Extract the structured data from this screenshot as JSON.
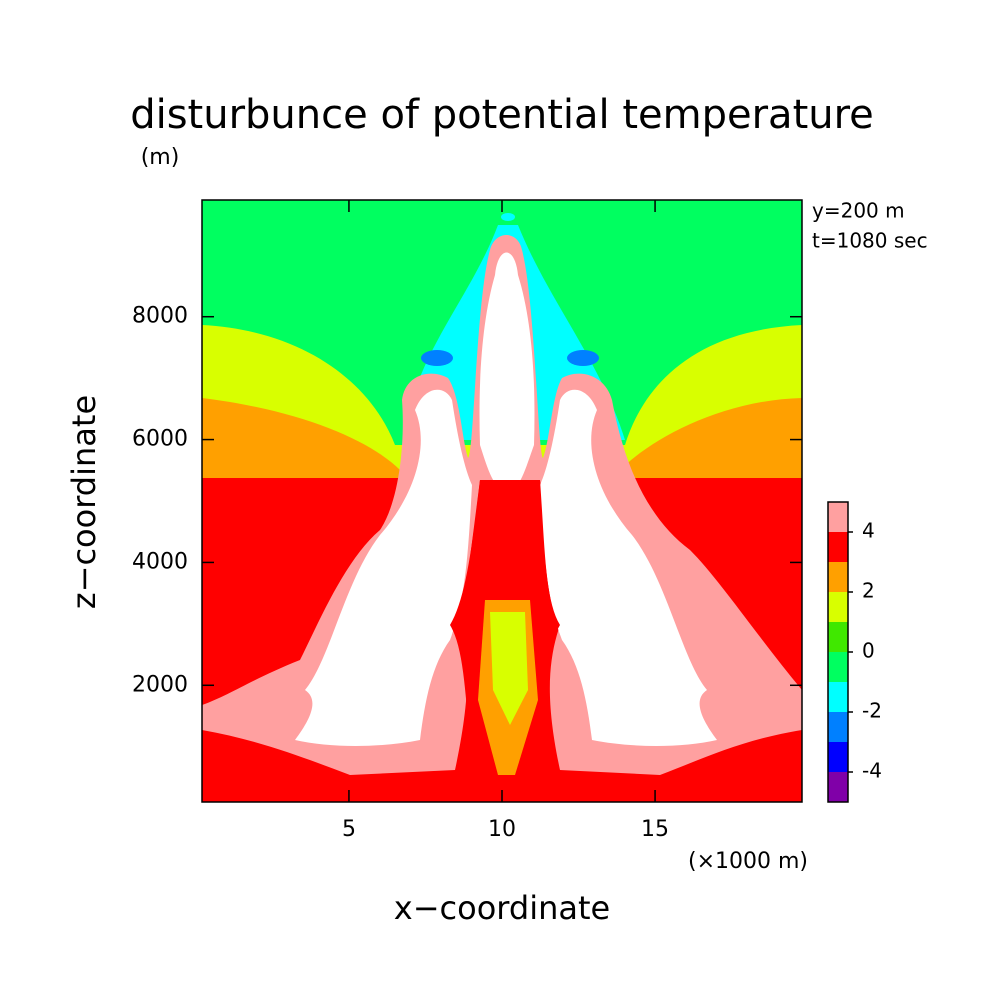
{
  "chart_data": {
    "type": "contour",
    "title": "disturbunce of potential temperature",
    "y_unit": "(m)",
    "x_unit": "(×1000 m)",
    "xlabel": "x−coordinate",
    "ylabel": "z−coordinate",
    "annotations": [
      "y=200 m",
      "t=1080 sec"
    ],
    "xlim": [
      0.2,
      19.8
    ],
    "xticks": [
      5,
      10,
      15
    ],
    "ylim": [
      100,
      9900
    ],
    "yticks": [
      2000,
      4000,
      6000,
      8000
    ],
    "colorbar": {
      "levels": [
        -5,
        -4,
        -3,
        -2,
        -1,
        0,
        1,
        2,
        3,
        4,
        5
      ],
      "colors": [
        "#8000a8",
        "#0000ff",
        "#0080ff",
        "#00ffff",
        "#00ff60",
        "#40e800",
        "#d8ff00",
        "#ffa000",
        "#ff0000",
        "#ffa0a0"
      ],
      "above_color": "#ffffff",
      "ticks": [
        -4,
        -2,
        0,
        2,
        4
      ]
    }
  }
}
